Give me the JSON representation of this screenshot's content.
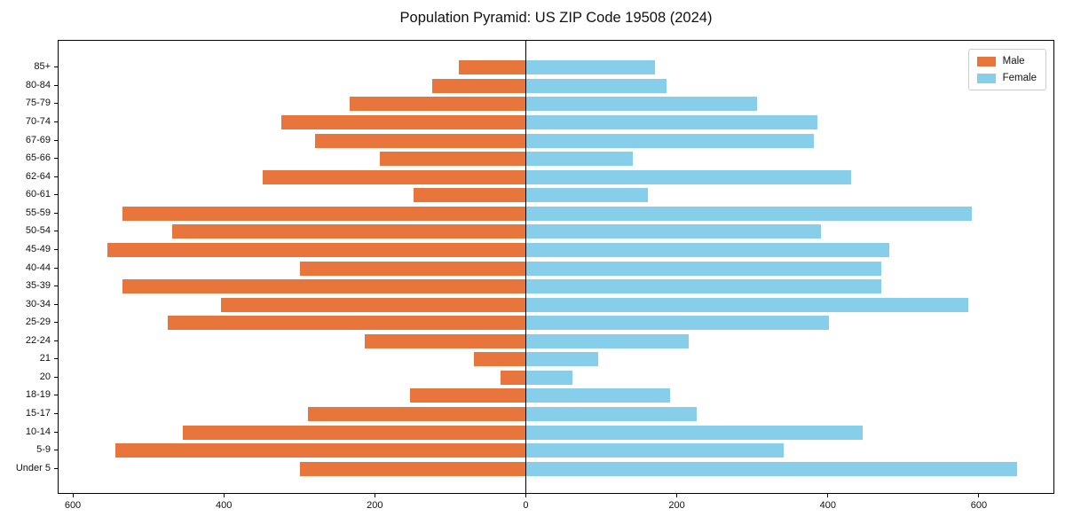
{
  "title": "Population Pyramid: US ZIP Code 19508 (2024)",
  "colors": {
    "male": "#E8763C",
    "female": "#87CEEB",
    "axis": "#000000",
    "legend_border": "#cccccc"
  },
  "legend": {
    "male_label": "Male",
    "female_label": "Female",
    "position": "upper right"
  },
  "chart_data": {
    "type": "bar",
    "subtype": "population-pyramid",
    "orientation": "horizontal",
    "title": "Population Pyramid: US ZIP Code 19508 (2024)",
    "categories_top_to_bottom": [
      "85+",
      "80-84",
      "75-79",
      "70-74",
      "67-69",
      "65-66",
      "62-64",
      "60-61",
      "55-59",
      "50-54",
      "45-49",
      "40-44",
      "35-39",
      "30-34",
      "25-29",
      "22-24",
      "21",
      "20",
      "18-19",
      "15-17",
      "10-14",
      "5-9",
      "Under 5"
    ],
    "series": [
      {
        "name": "Male",
        "side": "left",
        "color": "#E8763C",
        "values": [
          90,
          125,
          235,
          325,
          280,
          195,
          350,
          150,
          535,
          470,
          555,
          300,
          535,
          405,
          475,
          215,
          70,
          35,
          155,
          290,
          455,
          545,
          300
        ]
      },
      {
        "name": "Female",
        "side": "right",
        "color": "#87CEEB",
        "values": [
          170,
          185,
          305,
          385,
          380,
          140,
          430,
          160,
          590,
          390,
          480,
          470,
          470,
          585,
          400,
          215,
          95,
          60,
          190,
          225,
          445,
          340,
          650
        ]
      }
    ],
    "x_tick_values": [
      -600,
      -400,
      -200,
      0,
      200,
      400,
      600
    ],
    "x_tick_labels": [
      "600",
      "400",
      "200",
      "0",
      "200",
      "400",
      "600"
    ],
    "xlim": [
      -620,
      700
    ],
    "grid": false,
    "zero_line": true,
    "legend_position": "upper right"
  }
}
